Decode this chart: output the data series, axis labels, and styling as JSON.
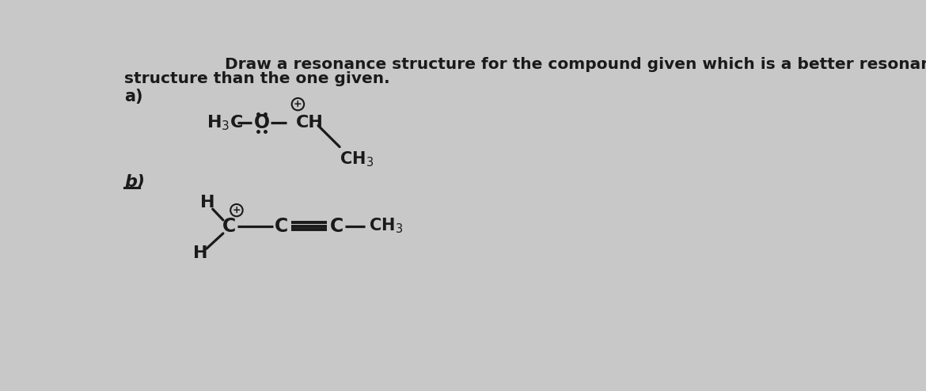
{
  "title_line1": "Draw a resonance structure for the compound given which is a better resonance",
  "title_line2": "structure than the one given.",
  "bg_color": "#c8c8c8",
  "text_color": "#1a1a1a",
  "label_a": "a)",
  "label_b": "b)",
  "title_fontsize": 14.5,
  "label_fontsize": 15,
  "chem_fontsize": 15
}
